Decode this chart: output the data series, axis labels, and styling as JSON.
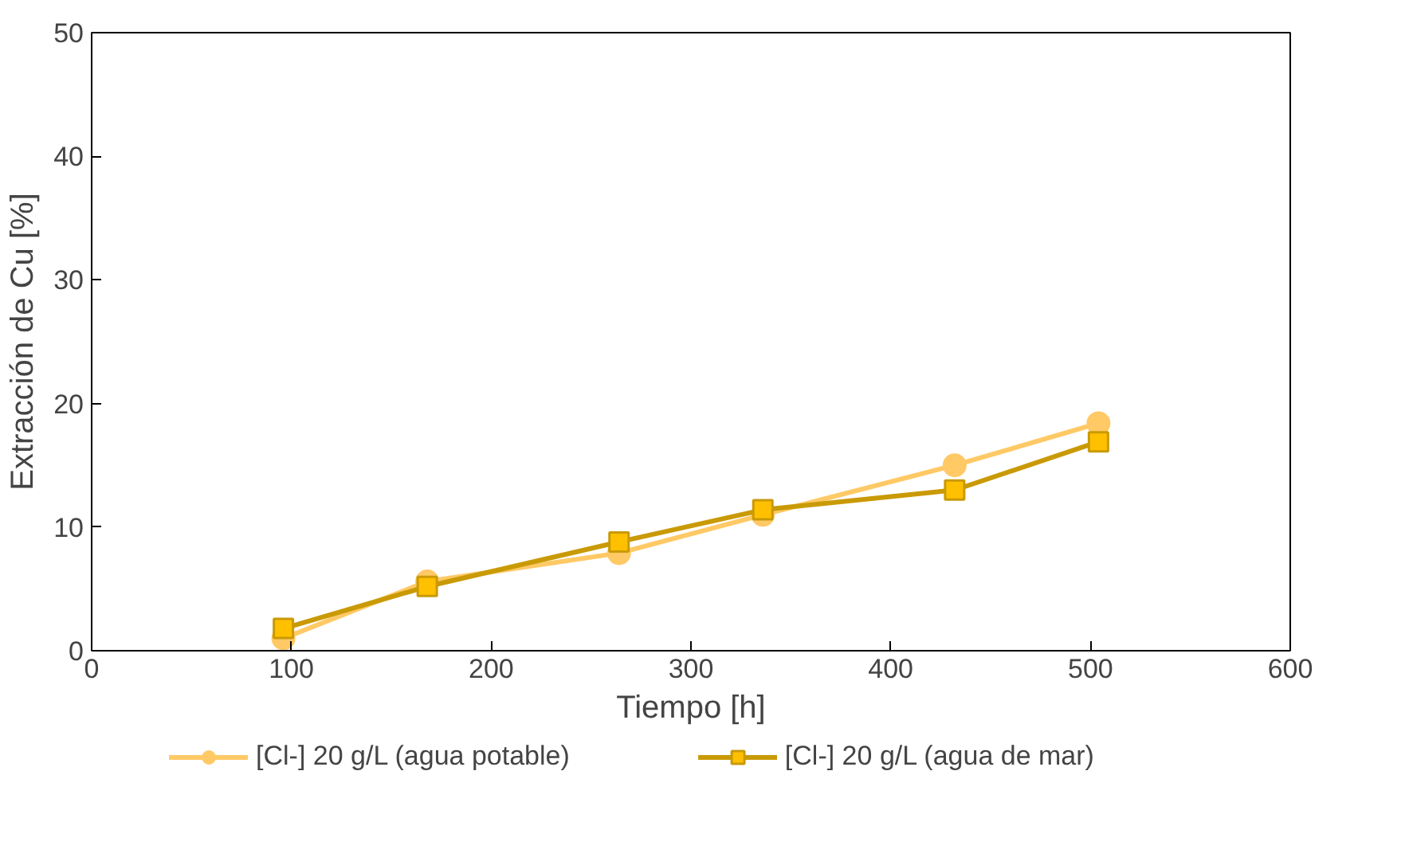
{
  "chart_data": {
    "type": "line",
    "xlabel": "Tiempo [h]",
    "ylabel": "Extracción de Cu [%]",
    "xlim": [
      0,
      600
    ],
    "xticks": [
      0,
      100,
      200,
      300,
      400,
      500,
      600
    ],
    "ylim": [
      0,
      50
    ],
    "yticks": [
      0,
      10,
      20,
      30,
      40,
      50
    ],
    "grid": false,
    "legend": "bottom",
    "series": [
      {
        "name": "[Cl-] 20 g/L (agua potable)",
        "color": "#ffc966",
        "marker": "circle",
        "x": [
          96,
          168,
          264,
          336,
          432,
          504
        ],
        "values": [
          1.0,
          5.6,
          7.9,
          11.0,
          15.0,
          18.4
        ]
      },
      {
        "name": "[Cl-] 20 g/L (agua de mar)",
        "color": "#c99a06",
        "marker": "square",
        "x": [
          96,
          168,
          264,
          336,
          432,
          504
        ],
        "values": [
          1.8,
          5.2,
          8.8,
          11.4,
          13.0,
          16.9
        ]
      }
    ]
  }
}
